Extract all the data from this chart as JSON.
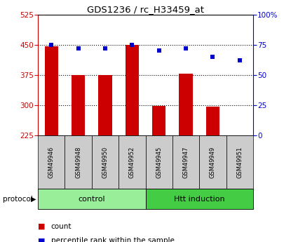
{
  "title": "GDS1236 / rc_H33459_at",
  "samples": [
    "GSM49946",
    "GSM49948",
    "GSM49950",
    "GSM49952",
    "GSM49945",
    "GSM49947",
    "GSM49949",
    "GSM49951"
  ],
  "counts": [
    447,
    375,
    375,
    450,
    298,
    378,
    296,
    226
  ],
  "percentile_ranks": [
    75,
    72,
    72,
    75,
    70,
    72,
    65,
    62
  ],
  "groups": [
    {
      "label": "control",
      "start": 0,
      "end": 4,
      "color": "#99ee99"
    },
    {
      "label": "Htt induction",
      "start": 4,
      "end": 8,
      "color": "#44cc44"
    }
  ],
  "ymin": 225,
  "ymax": 525,
  "yticks": [
    225,
    300,
    375,
    450,
    525
  ],
  "y2min": 0,
  "y2max": 100,
  "y2ticks": [
    0,
    25,
    50,
    75,
    100
  ],
  "y2ticklabels": [
    "0",
    "25",
    "50",
    "75",
    "100%"
  ],
  "bar_color": "#cc0000",
  "dot_color": "#0000cc",
  "label_bg_color": "#cccccc",
  "control_color": "#99ee99",
  "htt_color": "#44cc44",
  "protocol_label": "protocol",
  "legend_count": "count",
  "legend_percentile": "percentile rank within the sample"
}
